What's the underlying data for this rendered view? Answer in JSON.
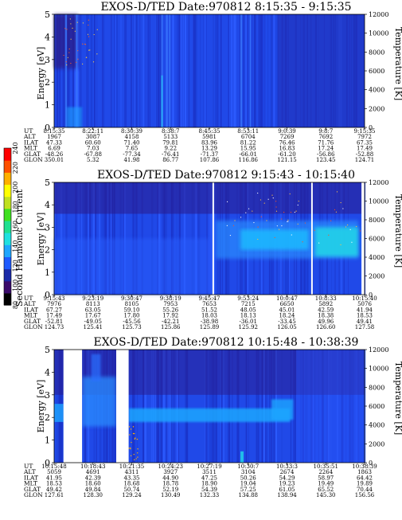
{
  "colorbar": {
    "label": "Second Harmonic Current",
    "ticks": [
      "240",
      "220",
      "200",
      "180",
      "160",
      "140",
      "120",
      "100",
      "80"
    ],
    "colors": [
      "#000000",
      "#3a0a6a",
      "#1a2aa8",
      "#1e5aff",
      "#1fa6ff",
      "#20e0e0",
      "#20e090",
      "#40e020",
      "#c0e020",
      "#ffff00",
      "#ffb000",
      "#ff5000",
      "#ff0000"
    ]
  },
  "axes": {
    "left_label": "Energy [eV]",
    "right_label": "Temperature [K]",
    "left_ticks": [
      "0",
      "1",
      "2",
      "3",
      "4",
      "5"
    ],
    "right_ticks": [
      "0",
      "2000",
      "4000",
      "6000",
      "8000",
      "10000",
      "12000"
    ]
  },
  "row_labels": [
    "UT",
    "ALT",
    "ILAT",
    "MLT",
    "GLAT",
    "GLON"
  ],
  "chart_data": [
    {
      "type": "heatmap",
      "title": "EXOS-D/TED   Date:970812   8:15:35 - 9:15:35",
      "ylim_energy": [
        0,
        5
      ],
      "ylim_temperature": [
        0,
        12000
      ],
      "data_gaps": [],
      "ephemeris": [
        [
          "8:15:35",
          "8:22:11",
          "8:30:39",
          "8:38:7",
          "8:45:35",
          "8:53:11",
          "9:0:39",
          "9:8:7",
          "9:15:35"
        ],
        [
          "1967",
          "3087",
          "4158",
          "5133",
          "5981",
          "6704",
          "7269",
          "7692",
          "7972"
        ],
        [
          "47.33",
          "60.60",
          "71.40",
          "79.81",
          "83.96",
          "81.22",
          "76.46",
          "71.76",
          "67.35"
        ],
        [
          "6.69",
          "7.03",
          "7.65",
          "9.22",
          "13.29",
          "15.95",
          "16.83",
          "17.24",
          "17.49"
        ],
        [
          "-48.26",
          "-67.88",
          "-77.34",
          "-76.41",
          "-71.37",
          "-66.01",
          "-61.20",
          "-56.86",
          "-52.88"
        ],
        [
          "350.01",
          "5.32",
          "41.98",
          "86.77",
          "107.86",
          "116.86",
          "121.15",
          "123.45",
          "124.71"
        ]
      ]
    },
    {
      "type": "heatmap",
      "title": "EXOS-D/TED   Date:970812   9:15:43 - 10:15:40",
      "ylim_energy": [
        0,
        5
      ],
      "ylim_temperature": [
        0,
        12000
      ],
      "data_gaps": [
        [
          0.51,
          0.515
        ],
        [
          0.828,
          0.833
        ],
        [
          0.99,
          1.0
        ]
      ],
      "ephemeris": [
        [
          "9:15:43",
          "9:23:19",
          "9:30:47",
          "9:38:19",
          "9:45:47",
          "9:53:24",
          "10:0:47",
          "10:8:33",
          "10:15:40"
        ],
        [
          "7976",
          "8113",
          "8105",
          "7953",
          "7653",
          "7215",
          "6650",
          "5892",
          "5076"
        ],
        [
          "67.27",
          "63.05",
          "59.10",
          "55.26",
          "51.52",
          "48.05",
          "45.01",
          "42.59",
          "41.94"
        ],
        [
          "17.49",
          "17.67",
          "17.80",
          "17.92",
          "18.03",
          "18.13",
          "18.24",
          "18.38",
          "18.53"
        ],
        [
          "-52.81",
          "-49.05",
          "-45.56",
          "-42.21",
          "-38.98",
          "-36.01",
          "-33.45",
          "49.96",
          "49.41"
        ],
        [
          "124.73",
          "125.41",
          "125.73",
          "125.86",
          "125.89",
          "125.92",
          "126.05",
          "126.60",
          "127.58"
        ]
      ]
    },
    {
      "type": "heatmap",
      "title": "EXOS-D/TED   Date:970812   10:15:48 - 10:38:39",
      "ylim_energy": [
        0,
        5
      ],
      "ylim_temperature": [
        0,
        12000
      ],
      "data_gaps": [
        [
          0.03,
          0.09
        ],
        [
          0.2,
          0.24
        ]
      ],
      "ephemeris": [
        [
          "10:15:48",
          "10:18:43",
          "10:21:35",
          "10:24:23",
          "10:27:19",
          "10:30:7",
          "10:33:3",
          "10:35:51",
          "10:38:39"
        ],
        [
          "5059",
          "4691",
          "4311",
          "3927",
          "3511",
          "3104",
          "2674",
          "2264",
          "1863"
        ],
        [
          "41.95",
          "42.39",
          "43.35",
          "44.90",
          "47.25",
          "50.26",
          "54.29",
          "58.97",
          "64.42"
        ],
        [
          "18.53",
          "18.60",
          "18.68",
          "18.78",
          "18.90",
          "19.04",
          "19.23",
          "19.49",
          "19.89"
        ],
        [
          "49.42",
          "49.84",
          "50.74",
          "52.19",
          "54.39",
          "57.25",
          "61.05",
          "65.52",
          "70.44"
        ],
        [
          "127.61",
          "128.30",
          "129.24",
          "130.49",
          "132.33",
          "134.88",
          "138.94",
          "145.30",
          "156.56"
        ]
      ]
    }
  ]
}
